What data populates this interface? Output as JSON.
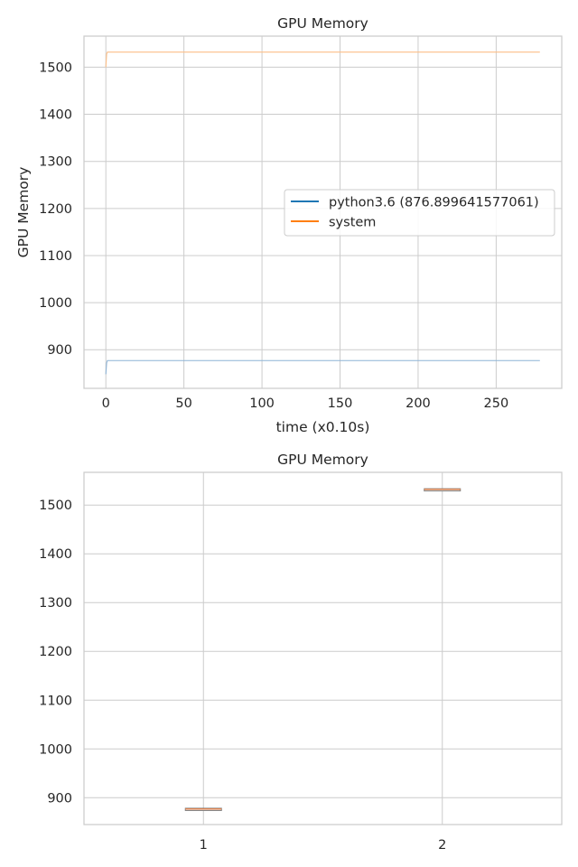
{
  "chart_data": [
    {
      "type": "line",
      "title": "GPU Memory",
      "xlabel": "time (x0.10s)",
      "ylabel": "GPU Memory",
      "xlim": [
        -14,
        292
      ],
      "ylim": [
        818,
        1566
      ],
      "xticks": [
        0,
        50,
        100,
        150,
        200,
        250
      ],
      "yticks": [
        900,
        1000,
        1100,
        1200,
        1300,
        1400,
        1500
      ],
      "grid": true,
      "legend": "center-right",
      "series": [
        {
          "name": "python3.6 (876.899641577061)",
          "legend_color": "#1f77b4",
          "line_color": "#8db3d6",
          "points": [
            [
              0,
              848
            ],
            [
              0.5,
              872
            ],
            [
              1,
              877
            ],
            [
              278,
              877
            ]
          ]
        },
        {
          "name": "system",
          "legend_color": "#ff7f0e",
          "line_color": "#fdbf87",
          "points": [
            [
              0,
              1500
            ],
            [
              0.5,
              1528
            ],
            [
              1,
              1532
            ],
            [
              278,
              1532
            ]
          ]
        }
      ]
    },
    {
      "type": "box",
      "title": "GPU Memory",
      "categories": [
        "1",
        "2"
      ],
      "ylim": [
        845,
        1567
      ],
      "yticks": [
        900,
        1000,
        1100,
        1200,
        1300,
        1400,
        1500
      ],
      "grid": true,
      "boxes": [
        {
          "category": "1",
          "median": 877,
          "q1": 876.5,
          "q3": 877.5,
          "whisker_low": 876,
          "whisker_high": 878
        },
        {
          "category": "2",
          "median": 1532,
          "q1": 1531.5,
          "q3": 1532.5,
          "whisker_low": 1531,
          "whisker_high": 1533
        }
      ],
      "box_color": "#7f7f7f",
      "median_color": "#dd8452"
    }
  ]
}
